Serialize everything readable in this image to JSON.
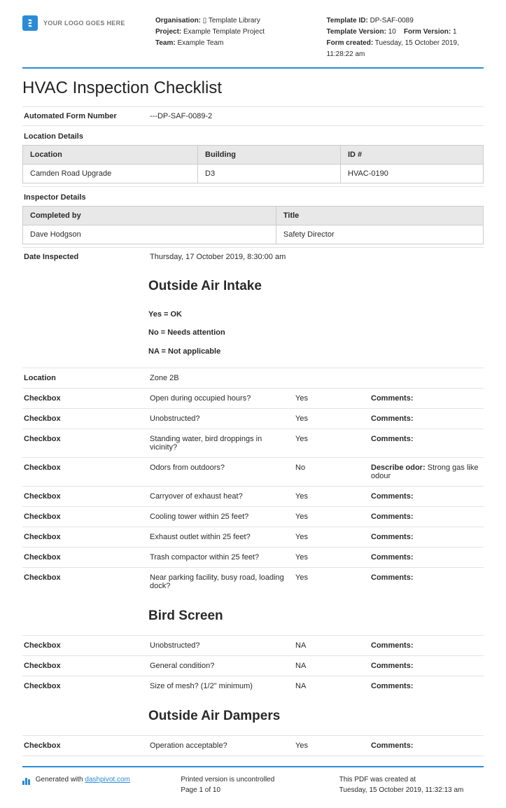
{
  "header": {
    "logo_text": "YOUR LOGO GOES HERE",
    "meta_left": {
      "organisation_label": "Organisation:",
      "organisation_value": "▯ Template Library",
      "project_label": "Project:",
      "project_value": "Example Template Project",
      "team_label": "Team:",
      "team_value": "Example Team"
    },
    "meta_right": {
      "template_id_label": "Template ID:",
      "template_id_value": "DP-SAF-0089",
      "template_version_label": "Template Version:",
      "template_version_value": "10",
      "form_version_label": "Form Version:",
      "form_version_value": "1",
      "form_created_label": "Form created:",
      "form_created_value": "Tuesday, 15 October 2019, 11:28:22 am"
    }
  },
  "title": "HVAC Inspection Checklist",
  "form_number": {
    "label": "Automated Form Number",
    "value": "---DP-SAF-0089-2"
  },
  "location_section": {
    "heading": "Location Details",
    "cols": [
      "Location",
      "Building",
      "ID #"
    ],
    "row": [
      "Camden Road Upgrade",
      "D3",
      "HVAC-0190"
    ]
  },
  "inspector_section": {
    "heading": "Inspector Details",
    "cols": [
      "Completed by",
      "Title"
    ],
    "row": [
      "Dave Hodgson",
      "Safety Director"
    ]
  },
  "date_inspected": {
    "label": "Date Inspected",
    "value": "Thursday, 17 October 2019, 8:30:00 am"
  },
  "air_intake": {
    "title": "Outside Air Intake",
    "legend": [
      "Yes = OK",
      "No = Needs attention",
      "NA = Not applicable"
    ],
    "location": {
      "label": "Location",
      "value": "Zone 2B"
    },
    "items": [
      {
        "q": "Open during occupied hours?",
        "a": "Yes",
        "c_label": "Comments:",
        "c_text": ""
      },
      {
        "q": "Unobstructed?",
        "a": "Yes",
        "c_label": "Comments:",
        "c_text": ""
      },
      {
        "q": "Standing water, bird droppings in vicinity?",
        "a": "Yes",
        "c_label": "Comments:",
        "c_text": ""
      },
      {
        "q": "Odors from outdoors?",
        "a": "No",
        "c_label": "Describe odor:",
        "c_text": "Strong gas like odour"
      },
      {
        "q": "Carryover of exhaust heat?",
        "a": "Yes",
        "c_label": "Comments:",
        "c_text": ""
      },
      {
        "q": "Cooling tower within 25 feet?",
        "a": "Yes",
        "c_label": "Comments:",
        "c_text": ""
      },
      {
        "q": "Exhaust outlet within 25 feet?",
        "a": "Yes",
        "c_label": "Comments:",
        "c_text": ""
      },
      {
        "q": "Trash compactor within 25 feet?",
        "a": "Yes",
        "c_label": "Comments:",
        "c_text": ""
      },
      {
        "q": "Near parking facility, busy road, loading dock?",
        "a": "Yes",
        "c_label": "Comments:",
        "c_text": ""
      }
    ]
  },
  "bird_screen": {
    "title": "Bird Screen",
    "items": [
      {
        "q": "Unobstructed?",
        "a": "NA",
        "c_label": "Comments:",
        "c_text": ""
      },
      {
        "q": "General condition?",
        "a": "NA",
        "c_label": "Comments:",
        "c_text": ""
      },
      {
        "q": "Size of mesh? (1/2\" minimum)",
        "a": "NA",
        "c_label": "Comments:",
        "c_text": ""
      }
    ]
  },
  "dampers": {
    "title": "Outside Air Dampers",
    "items": [
      {
        "q": "Operation acceptable?",
        "a": "Yes",
        "c_label": "Comments:",
        "c_text": ""
      }
    ]
  },
  "checkbox_label": "Checkbox",
  "footer": {
    "generated_prefix": "Generated with ",
    "generated_link": "dashpivot.com",
    "uncontrolled": "Printed version is uncontrolled",
    "page": "Page 1 of 10",
    "created_label": "This PDF was created at",
    "created_value": "Tuesday, 15 October 2019, 11:32:13 am"
  }
}
